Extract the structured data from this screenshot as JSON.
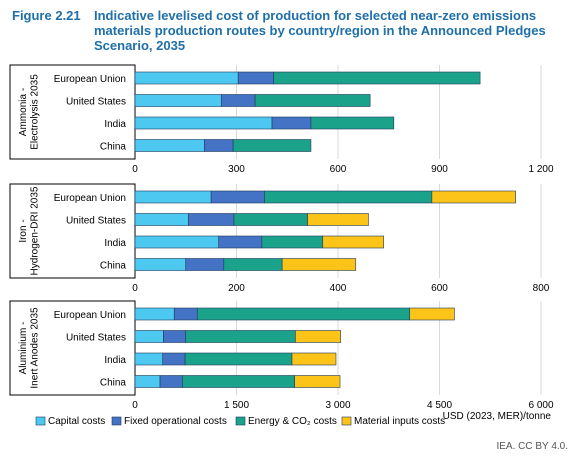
{
  "figure": {
    "number": "Figure 2.21",
    "title": "Indicative levelised cost of production for selected near-zero emissions materials production routes by country/region in the Announced Pledges Scenario, 2035"
  },
  "colors": {
    "capital": "#4dc8f0",
    "fixed": "#4472c4",
    "energy": "#1aa38a",
    "material": "#fcc419",
    "title": "#1f6fa8"
  },
  "legend": [
    {
      "key": "capital",
      "label": "Capital costs"
    },
    {
      "key": "fixed",
      "label": "Fixed operational costs"
    },
    {
      "key": "energy",
      "label": "Energy & CO₂ costs"
    },
    {
      "key": "material",
      "label": "Material inputs costs"
    }
  ],
  "chart_data": [
    {
      "type": "bar",
      "orientation": "horizontal",
      "stacked": true,
      "panel_label": "Ammonia - Electrolysis 2035",
      "categories": [
        "European Union",
        "United States",
        "India",
        "China"
      ],
      "series": [
        {
          "name": "Capital costs",
          "key": "capital",
          "values": [
            305,
            255,
            405,
            205
          ]
        },
        {
          "name": "Fixed operational costs",
          "key": "fixed",
          "values": [
            105,
            100,
            115,
            85
          ]
        },
        {
          "name": "Energy & CO₂ costs",
          "key": "energy",
          "values": [
            610,
            340,
            245,
            230
          ]
        },
        {
          "name": "Material inputs costs",
          "key": "material",
          "values": [
            0,
            0,
            0,
            0
          ]
        }
      ],
      "xlim": [
        0,
        1200
      ],
      "ticks": [
        0,
        300,
        600,
        900,
        1200
      ],
      "tick_labels": [
        "0",
        "300",
        "600",
        "900",
        "1 200"
      ],
      "xlabel": ""
    },
    {
      "type": "bar",
      "orientation": "horizontal",
      "stacked": true,
      "panel_label": "Iron - Hydrogen-DRI 2035",
      "categories": [
        "European Union",
        "United States",
        "India",
        "China"
      ],
      "series": [
        {
          "name": "Capital costs",
          "key": "capital",
          "values": [
            150,
            105,
            165,
            100
          ]
        },
        {
          "name": "Fixed operational costs",
          "key": "fixed",
          "values": [
            105,
            90,
            85,
            75
          ]
        },
        {
          "name": "Energy & CO₂ costs",
          "key": "energy",
          "values": [
            330,
            145,
            120,
            115
          ]
        },
        {
          "name": "Material inputs costs",
          "key": "material",
          "values": [
            165,
            120,
            120,
            145
          ]
        }
      ],
      "xlim": [
        0,
        800
      ],
      "ticks": [
        0,
        200,
        400,
        600,
        800
      ],
      "tick_labels": [
        "0",
        "200",
        "400",
        "600",
        "800"
      ],
      "xlabel": ""
    },
    {
      "type": "bar",
      "orientation": "horizontal",
      "stacked": true,
      "panel_label": "Aluminium - Inert Anodes 2035",
      "categories": [
        "European Union",
        "United States",
        "India",
        "China"
      ],
      "series": [
        {
          "name": "Capital costs",
          "key": "capital",
          "values": [
            580,
            420,
            410,
            370
          ]
        },
        {
          "name": "Fixed operational costs",
          "key": "fixed",
          "values": [
            340,
            330,
            330,
            330
          ]
        },
        {
          "name": "Energy & CO₂ costs",
          "key": "energy",
          "values": [
            3140,
            1620,
            1580,
            1660
          ]
        },
        {
          "name": "Material inputs costs",
          "key": "material",
          "values": [
            660,
            670,
            650,
            670
          ]
        }
      ],
      "xlim": [
        0,
        6000
      ],
      "ticks": [
        0,
        1500,
        3000,
        4500,
        6000
      ],
      "tick_labels": [
        "0",
        "1 500",
        "3 000",
        "4 500",
        "6 000"
      ],
      "xlabel": "USD (2023, MER)/tonne"
    }
  ],
  "footer": "IEA. CC BY 4.0."
}
